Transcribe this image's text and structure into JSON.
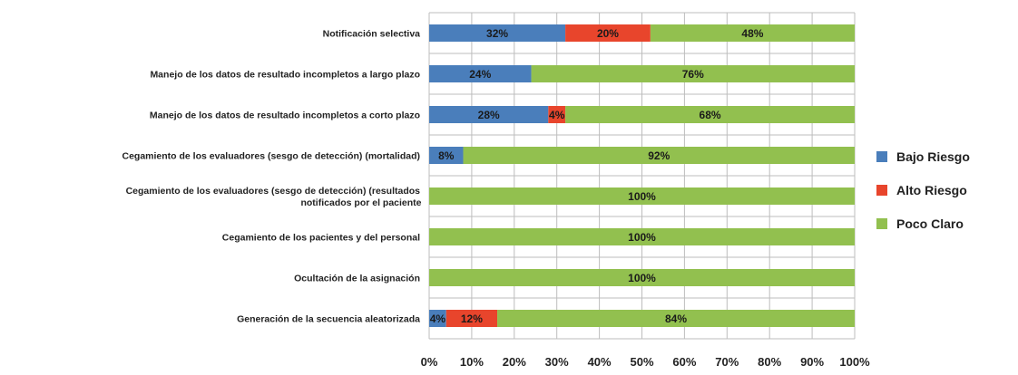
{
  "chart_data": {
    "type": "bar",
    "orientation": "horizontal",
    "stacked": true,
    "categories": [
      "Notificación selectiva",
      "Manejo de los datos de resultado incompletos a largo plazo",
      "Manejo de los datos de resultado incompletos a corto plazo",
      "Cegamiento de los evaluadores (sesgo de detección) (mortalidad)",
      [
        "Cegamiento de los evaluadores (sesgo de detección) (resultados",
        "notificados por el paciente"
      ],
      "Cegamiento de los pacientes y del personal",
      "Ocultación de la asignación",
      "Generación de la secuencia aleatorizada"
    ],
    "series": [
      {
        "name": "Bajo Riesgo",
        "color": "#4a7ebb",
        "values": [
          32,
          24,
          28,
          8,
          0,
          0,
          0,
          4
        ]
      },
      {
        "name": "Alto Riesgo",
        "color": "#e8452c",
        "values": [
          20,
          0,
          4,
          0,
          0,
          0,
          0,
          12
        ]
      },
      {
        "name": "Poco Claro",
        "color": "#92c04f",
        "values": [
          48,
          76,
          68,
          92,
          100,
          100,
          100,
          84
        ]
      }
    ],
    "data_labels": [
      [
        "32%",
        "20%",
        "48%"
      ],
      [
        "24%",
        "",
        "76%"
      ],
      [
        "28%",
        "4%",
        "68%"
      ],
      [
        "8%",
        "",
        "92%"
      ],
      [
        "",
        "",
        "100%"
      ],
      [
        "",
        "",
        "100%"
      ],
      [
        "",
        "",
        "100%"
      ],
      [
        "4%",
        "12%",
        "84%"
      ]
    ],
    "xticks": [
      "0%",
      "10%",
      "20%",
      "30%",
      "40%",
      "50%",
      "60%",
      "70%",
      "80%",
      "90%",
      "100%"
    ],
    "xlim": [
      0,
      100
    ],
    "grid": true,
    "legend_position": "right"
  }
}
